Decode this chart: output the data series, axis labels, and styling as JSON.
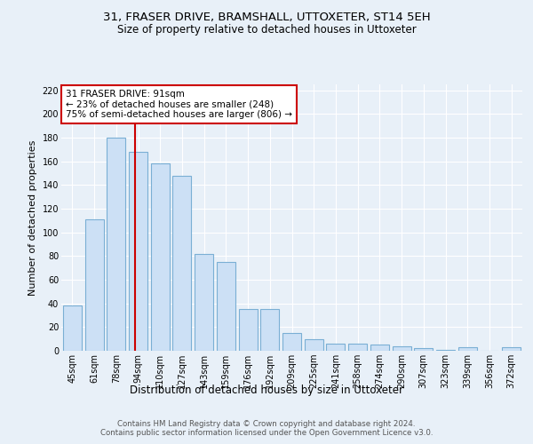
{
  "title1": "31, FRASER DRIVE, BRAMSHALL, UTTOXETER, ST14 5EH",
  "title2": "Size of property relative to detached houses in Uttoxeter",
  "xlabel": "Distribution of detached houses by size in Uttoxeter",
  "ylabel": "Number of detached properties",
  "categories": [
    "45sqm",
    "61sqm",
    "78sqm",
    "94sqm",
    "110sqm",
    "127sqm",
    "143sqm",
    "159sqm",
    "176sqm",
    "192sqm",
    "209sqm",
    "225sqm",
    "241sqm",
    "258sqm",
    "274sqm",
    "290sqm",
    "307sqm",
    "323sqm",
    "339sqm",
    "356sqm",
    "372sqm"
  ],
  "values": [
    38,
    111,
    180,
    168,
    158,
    148,
    82,
    75,
    35,
    35,
    15,
    10,
    6,
    6,
    5,
    4,
    2,
    1,
    3,
    0,
    3
  ],
  "bar_color": "#cce0f5",
  "bar_edge_color": "#7aafd4",
  "annotation_title": "31 FRASER DRIVE: 91sqm",
  "annotation_line1": "← 23% of detached houses are smaller (248)",
  "annotation_line2": "75% of semi-detached houses are larger (806) →",
  "annotation_box_color": "#ffffff",
  "annotation_box_edge": "#cc0000",
  "vline_color": "#cc0000",
  "footer1": "Contains HM Land Registry data © Crown copyright and database right 2024.",
  "footer2": "Contains public sector information licensed under the Open Government Licence v3.0.",
  "ylim": [
    0,
    225
  ],
  "yticks": [
    0,
    20,
    40,
    60,
    80,
    100,
    120,
    140,
    160,
    180,
    200,
    220
  ],
  "background_color": "#e8f0f8",
  "plot_bg_color": "#e8f0f8",
  "grid_color": "#ffffff",
  "title1_fontsize": 9.5,
  "title2_fontsize": 8.5,
  "xlabel_fontsize": 8.5,
  "ylabel_fontsize": 8,
  "tick_fontsize": 7,
  "annotation_fontsize": 7.5,
  "vline_x_idx": 2.85
}
